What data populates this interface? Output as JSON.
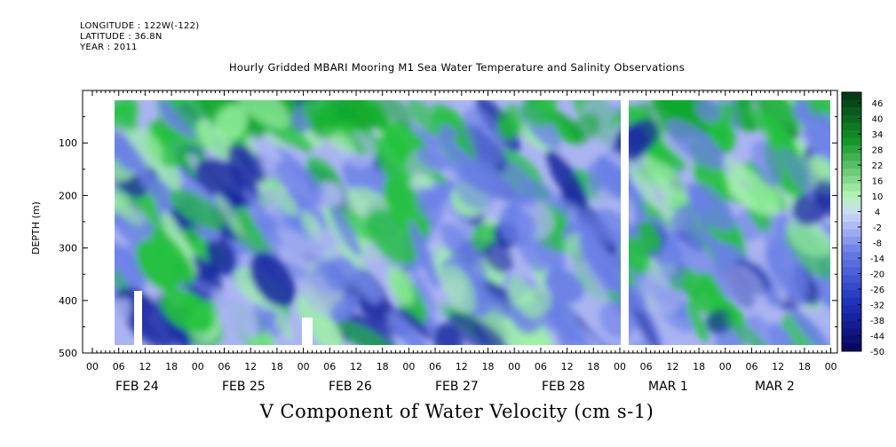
{
  "header": {
    "longitude": "LONGITUDE : 122W(-122)",
    "latitude": "LATITUDE : 36.8N",
    "year": "YEAR : 2011"
  },
  "chart_data": {
    "type": "heatmap",
    "title": "Hourly Gridded MBARI Mooring M1 Sea Water Temperature and Salinity Observations",
    "xlabel": "V Component of Water Velocity (cm s-1)",
    "ylabel": "DEPTH (m)",
    "ylim": [
      500,
      0
    ],
    "y_ticks": [
      100,
      200,
      300,
      400,
      500
    ],
    "hour_ticks": [
      "00",
      "06",
      "12",
      "18",
      "00",
      "06",
      "12",
      "18",
      "00",
      "06",
      "12",
      "18",
      "00",
      "06",
      "12",
      "18",
      "00",
      "06",
      "12",
      "18",
      "00",
      "06",
      "12",
      "18",
      "00",
      "06",
      "12",
      "18",
      "00"
    ],
    "day_labels": [
      "FEB 24",
      "FEB 25",
      "FEB 26",
      "FEB 27",
      "FEB 28",
      "MAR  1",
      "MAR  2"
    ],
    "colorbar_levels": [
      "46",
      "40",
      "34",
      "28",
      "22",
      "16",
      "10",
      "4",
      "-2",
      "-8",
      "-14",
      "-20",
      "-26",
      "-32",
      "-38",
      "-44",
      "-50"
    ],
    "colors": {
      "strong_positive": "#0a5a1e",
      "positive": "#22c23c",
      "weak_positive": "#9ff0a8",
      "near_zero": "#aab4f2",
      "negative": "#6a80e6",
      "strong_negative": "#1a2aa0"
    },
    "data_range": {
      "depth_min": 20,
      "depth_max": 485,
      "start": "FEB 24 ~05",
      "end": "MAR 2 ~22"
    },
    "summary": "Green (northward positive velocity) bands concentrated near surface 20-80 m, blue (negative) dominates mid-depths; diagonal green streaks descending with time."
  }
}
